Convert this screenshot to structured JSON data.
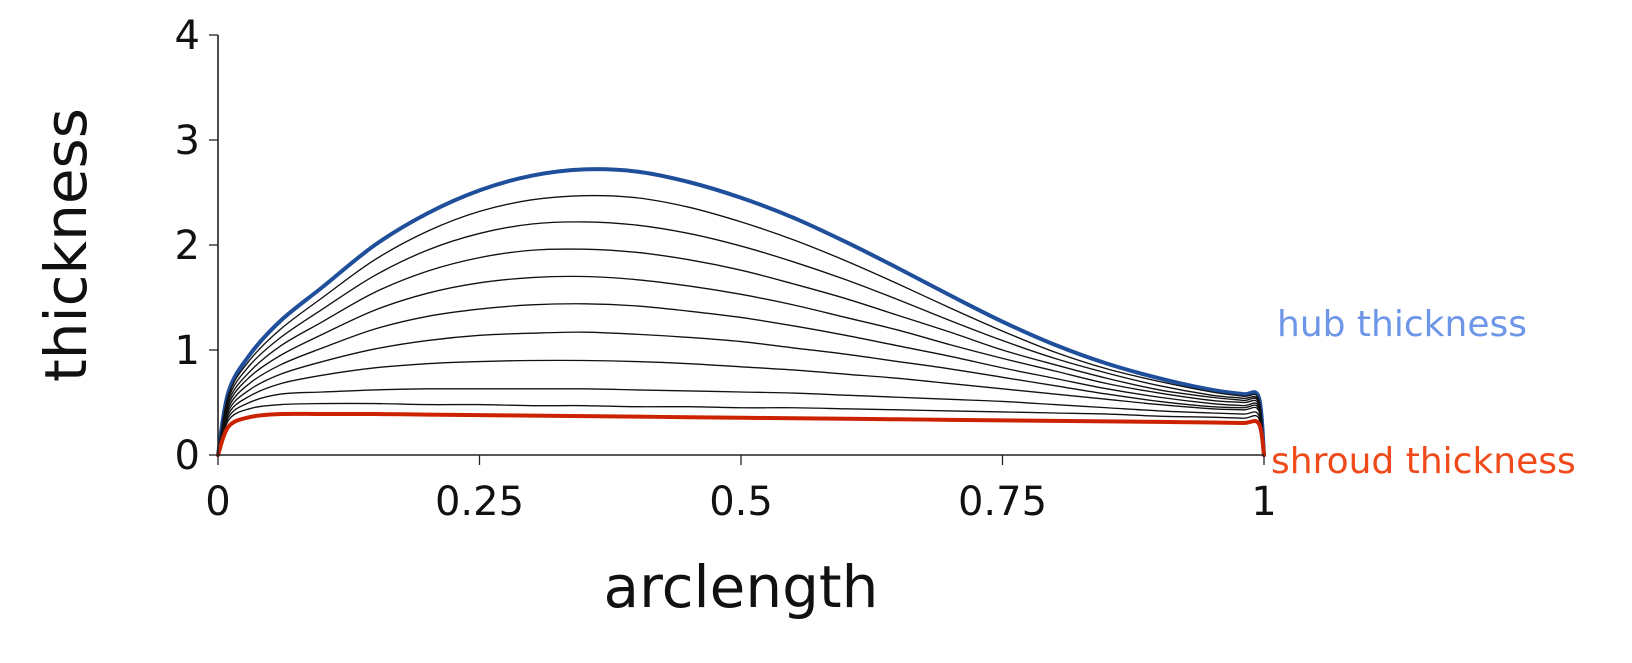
{
  "chart_data": {
    "type": "line",
    "title": "",
    "xlabel": "arclength",
    "ylabel": "thickness",
    "xlim": [
      0,
      1
    ],
    "ylim": [
      0,
      4
    ],
    "xticks": [
      "0",
      "0.25",
      "0.5",
      "0.75",
      "1"
    ],
    "xtick_values": [
      0,
      0.25,
      0.5,
      0.75,
      1
    ],
    "yticks": [
      "0",
      "1",
      "2",
      "3",
      "4"
    ],
    "ytick_values": [
      0,
      1,
      2,
      3,
      4
    ],
    "grid": false,
    "annotations": {
      "hub": "hub thickness",
      "shroud": "shroud thickness"
    },
    "colors": {
      "hub": "#1f4e9a",
      "shroud": "#cc2200",
      "intermediate": "#111111",
      "hub_label": "#6d95e8",
      "shroud_label": "#f04a1b"
    },
    "series": [
      {
        "role": "hub",
        "x": [
          0,
          0.01,
          0.03,
          0.06,
          0.1,
          0.15,
          0.2,
          0.25,
          0.3,
          0.35,
          0.4,
          0.45,
          0.5,
          0.55,
          0.6,
          0.65,
          0.7,
          0.75,
          0.8,
          0.85,
          0.9,
          0.95,
          0.98,
          0.995,
          1
        ],
        "y": [
          0,
          0.6,
          0.95,
          1.28,
          1.6,
          2.0,
          2.3,
          2.52,
          2.66,
          2.72,
          2.7,
          2.6,
          2.45,
          2.26,
          2.03,
          1.78,
          1.52,
          1.27,
          1.05,
          0.87,
          0.73,
          0.62,
          0.58,
          0.55,
          0
        ]
      },
      {
        "role": "intermediate",
        "x": [
          0,
          0.01,
          0.03,
          0.06,
          0.1,
          0.15,
          0.2,
          0.25,
          0.3,
          0.35,
          0.4,
          0.45,
          0.5,
          0.55,
          0.6,
          0.65,
          0.7,
          0.75,
          0.8,
          0.85,
          0.9,
          0.95,
          0.98,
          0.995,
          1
        ],
        "y": [
          0,
          0.57,
          0.9,
          1.2,
          1.5,
          1.86,
          2.13,
          2.32,
          2.43,
          2.47,
          2.45,
          2.36,
          2.22,
          2.05,
          1.85,
          1.63,
          1.4,
          1.18,
          0.98,
          0.82,
          0.7,
          0.6,
          0.56,
          0.53,
          0
        ]
      },
      {
        "role": "intermediate",
        "x": [
          0,
          0.01,
          0.03,
          0.06,
          0.1,
          0.15,
          0.2,
          0.25,
          0.3,
          0.35,
          0.4,
          0.45,
          0.5,
          0.55,
          0.6,
          0.65,
          0.7,
          0.75,
          0.8,
          0.85,
          0.9,
          0.95,
          0.98,
          0.995,
          1
        ],
        "y": [
          0,
          0.54,
          0.85,
          1.12,
          1.39,
          1.71,
          1.95,
          2.11,
          2.2,
          2.22,
          2.19,
          2.11,
          1.99,
          1.84,
          1.67,
          1.48,
          1.28,
          1.09,
          0.92,
          0.78,
          0.66,
          0.57,
          0.54,
          0.51,
          0
        ]
      },
      {
        "role": "intermediate",
        "x": [
          0,
          0.01,
          0.03,
          0.06,
          0.1,
          0.15,
          0.2,
          0.25,
          0.3,
          0.35,
          0.4,
          0.45,
          0.5,
          0.55,
          0.6,
          0.65,
          0.7,
          0.75,
          0.8,
          0.85,
          0.9,
          0.95,
          0.98,
          0.995,
          1
        ],
        "y": [
          0,
          0.51,
          0.79,
          1.04,
          1.27,
          1.55,
          1.75,
          1.88,
          1.95,
          1.96,
          1.93,
          1.86,
          1.76,
          1.63,
          1.49,
          1.33,
          1.17,
          1.0,
          0.86,
          0.73,
          0.62,
          0.55,
          0.52,
          0.5,
          0
        ]
      },
      {
        "role": "intermediate",
        "x": [
          0,
          0.01,
          0.03,
          0.06,
          0.1,
          0.15,
          0.2,
          0.25,
          0.3,
          0.35,
          0.4,
          0.45,
          0.5,
          0.55,
          0.6,
          0.65,
          0.7,
          0.75,
          0.8,
          0.85,
          0.9,
          0.95,
          0.98,
          0.995,
          1
        ],
        "y": [
          0,
          0.48,
          0.74,
          0.95,
          1.15,
          1.38,
          1.54,
          1.64,
          1.69,
          1.7,
          1.67,
          1.61,
          1.53,
          1.43,
          1.31,
          1.19,
          1.05,
          0.92,
          0.8,
          0.68,
          0.59,
          0.52,
          0.5,
          0.48,
          0
        ]
      },
      {
        "role": "intermediate",
        "x": [
          0,
          0.01,
          0.03,
          0.06,
          0.1,
          0.15,
          0.2,
          0.25,
          0.3,
          0.35,
          0.4,
          0.45,
          0.5,
          0.55,
          0.6,
          0.65,
          0.7,
          0.75,
          0.8,
          0.85,
          0.9,
          0.95,
          0.98,
          0.995,
          1
        ],
        "y": [
          0,
          0.45,
          0.68,
          0.86,
          1.02,
          1.2,
          1.32,
          1.39,
          1.43,
          1.44,
          1.42,
          1.37,
          1.31,
          1.23,
          1.14,
          1.04,
          0.94,
          0.83,
          0.73,
          0.63,
          0.55,
          0.49,
          0.47,
          0.46,
          0
        ]
      },
      {
        "role": "intermediate",
        "x": [
          0,
          0.01,
          0.03,
          0.06,
          0.1,
          0.15,
          0.2,
          0.25,
          0.3,
          0.35,
          0.4,
          0.45,
          0.5,
          0.55,
          0.6,
          0.65,
          0.7,
          0.75,
          0.8,
          0.85,
          0.9,
          0.95,
          0.98,
          0.995,
          1
        ],
        "y": [
          0,
          0.42,
          0.62,
          0.77,
          0.89,
          1.01,
          1.09,
          1.14,
          1.16,
          1.17,
          1.15,
          1.12,
          1.08,
          1.02,
          0.96,
          0.89,
          0.82,
          0.74,
          0.66,
          0.58,
          0.51,
          0.46,
          0.45,
          0.44,
          0
        ]
      },
      {
        "role": "intermediate",
        "x": [
          0,
          0.01,
          0.03,
          0.06,
          0.1,
          0.15,
          0.2,
          0.25,
          0.3,
          0.35,
          0.4,
          0.45,
          0.5,
          0.55,
          0.6,
          0.65,
          0.7,
          0.75,
          0.8,
          0.85,
          0.9,
          0.95,
          0.98,
          0.995,
          1
        ],
        "y": [
          0,
          0.39,
          0.56,
          0.68,
          0.76,
          0.83,
          0.87,
          0.89,
          0.9,
          0.9,
          0.89,
          0.87,
          0.84,
          0.81,
          0.77,
          0.73,
          0.68,
          0.63,
          0.58,
          0.53,
          0.48,
          0.44,
          0.43,
          0.42,
          0
        ]
      },
      {
        "role": "intermediate",
        "x": [
          0,
          0.01,
          0.03,
          0.06,
          0.1,
          0.15,
          0.2,
          0.25,
          0.3,
          0.35,
          0.4,
          0.45,
          0.5,
          0.55,
          0.6,
          0.65,
          0.7,
          0.75,
          0.8,
          0.85,
          0.9,
          0.95,
          0.98,
          0.995,
          1
        ],
        "y": [
          0,
          0.36,
          0.5,
          0.58,
          0.6,
          0.62,
          0.63,
          0.63,
          0.63,
          0.63,
          0.62,
          0.61,
          0.6,
          0.59,
          0.57,
          0.55,
          0.53,
          0.51,
          0.48,
          0.45,
          0.42,
          0.4,
          0.39,
          0.38,
          0
        ]
      },
      {
        "role": "intermediate",
        "x": [
          0,
          0.01,
          0.03,
          0.06,
          0.1,
          0.15,
          0.2,
          0.25,
          0.3,
          0.35,
          0.4,
          0.45,
          0.5,
          0.55,
          0.6,
          0.65,
          0.7,
          0.75,
          0.8,
          0.85,
          0.9,
          0.95,
          0.98,
          0.995,
          1
        ],
        "y": [
          0,
          0.33,
          0.44,
          0.48,
          0.49,
          0.49,
          0.48,
          0.48,
          0.47,
          0.47,
          0.46,
          0.46,
          0.45,
          0.45,
          0.44,
          0.43,
          0.42,
          0.41,
          0.4,
          0.39,
          0.37,
          0.36,
          0.35,
          0.35,
          0
        ]
      },
      {
        "role": "shroud",
        "x": [
          0,
          0.01,
          0.03,
          0.06,
          0.1,
          0.15,
          0.2,
          0.25,
          0.3,
          0.35,
          0.4,
          0.45,
          0.5,
          0.55,
          0.6,
          0.65,
          0.7,
          0.75,
          0.8,
          0.85,
          0.9,
          0.95,
          0.98,
          0.995,
          1
        ],
        "y": [
          0,
          0.27,
          0.36,
          0.39,
          0.39,
          0.39,
          0.385,
          0.38,
          0.375,
          0.37,
          0.365,
          0.36,
          0.355,
          0.35,
          0.345,
          0.34,
          0.335,
          0.33,
          0.325,
          0.32,
          0.315,
          0.31,
          0.305,
          0.3,
          0
        ]
      }
    ]
  }
}
